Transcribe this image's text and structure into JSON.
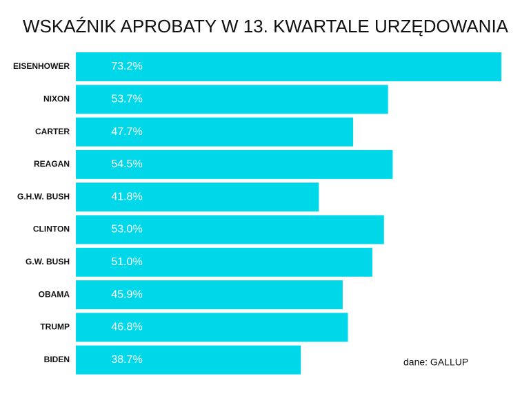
{
  "chart_data": {
    "type": "bar",
    "orientation": "horizontal",
    "title": "WSKAŹNIK APROBATY W 13. KWARTALE URZĘDOWANIA",
    "source": "dane: GALLUP",
    "categories": [
      "EISENHOWER",
      "NIXON",
      "CARTER",
      "REAGAN",
      "G.H.W. BUSH",
      "CLINTON",
      "G.W. BUSH",
      "OBAMA",
      "TRUMP",
      "BIDEN"
    ],
    "values": [
      73.2,
      53.7,
      47.7,
      54.5,
      41.8,
      53.0,
      51.0,
      45.9,
      46.8,
      38.7
    ],
    "value_labels": [
      "73.2%",
      "53.7%",
      "47.7%",
      "54.5%",
      "41.8%",
      "53.0%",
      "51.0%",
      "45.9%",
      "46.8%",
      "38.7%"
    ],
    "color": "#00d8ea"
  }
}
